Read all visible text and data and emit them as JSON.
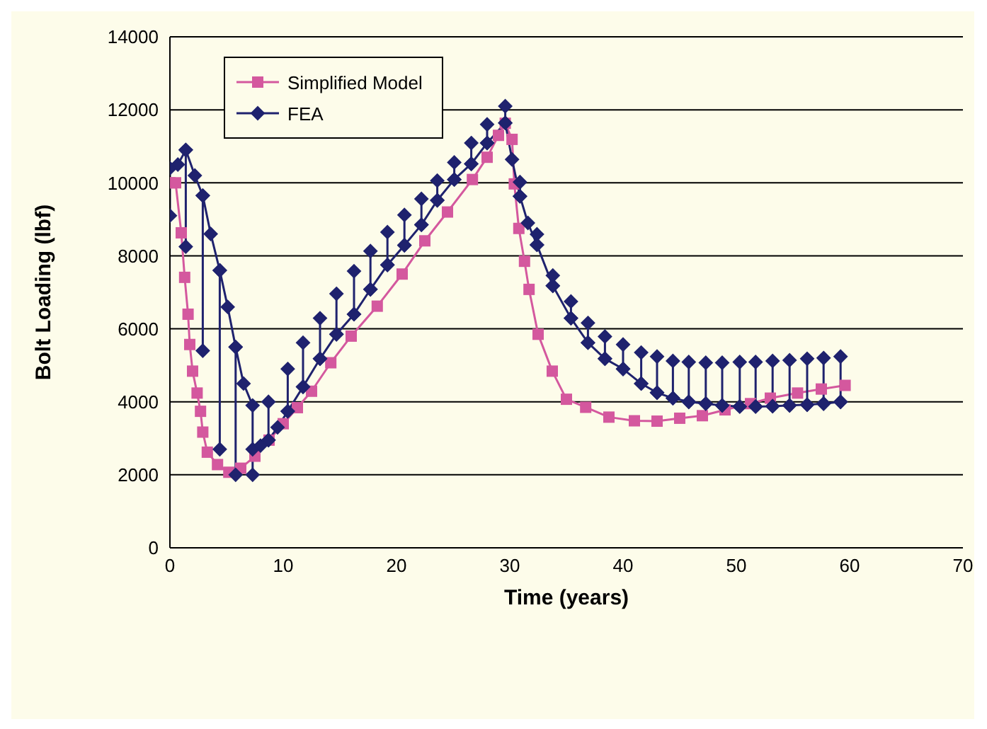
{
  "chart_data": {
    "type": "line",
    "xlabel": "Time (years)",
    "ylabel": "Bolt Loading (lbf)",
    "xlim": [
      0,
      70
    ],
    "xticks": [
      0,
      10,
      20,
      30,
      40,
      50,
      60,
      70
    ],
    "ylim": [
      0,
      14000
    ],
    "yticks": [
      0,
      2000,
      4000,
      6000,
      8000,
      10000,
      12000,
      14000
    ],
    "grid": "y",
    "legend": "top left",
    "line_style": "solid",
    "series": [
      {
        "name": "Simplified Model",
        "color": "#d4589e",
        "marker": "square",
        "x": [
          0,
          0.5,
          1.0,
          1.3,
          1.6,
          1.75,
          2.0,
          2.4,
          2.7,
          2.9,
          3.3,
          4.2,
          5.2,
          6.25,
          7.5,
          8.75,
          10,
          11.25,
          12.5,
          14.2,
          16,
          18.3,
          20.5,
          22.5,
          24.5,
          26.7,
          28,
          29,
          29.6,
          30.2,
          30.4,
          30.8,
          31.3,
          31.7,
          32.5,
          33.75,
          35,
          36.7,
          38.75,
          41,
          43,
          45,
          47,
          49,
          51.25,
          53,
          55.4,
          57.5,
          59.6
        ],
        "values": [
          10000,
          10000,
          8630,
          7410,
          6400,
          5570,
          4840,
          4240,
          3740,
          3170,
          2620,
          2280,
          2070,
          2180,
          2510,
          2950,
          3400,
          3840,
          4290,
          5070,
          5800,
          6620,
          7500,
          8410,
          9200,
          10090,
          10700,
          11300,
          11630,
          11190,
          9970,
          8750,
          7850,
          7080,
          5850,
          4840,
          4070,
          3850,
          3580,
          3480,
          3470,
          3550,
          3620,
          3780,
          3950,
          4100,
          4240,
          4350,
          4450
        ]
      },
      {
        "name": "FEA",
        "color": "#1f226e",
        "marker": "diamond",
        "x": [
          0,
          0,
          0.7,
          1.4,
          1.4,
          1.4,
          2.2,
          2.9,
          2.9,
          2.9,
          3.6,
          4.4,
          4.4,
          4.4,
          5.1,
          5.8,
          5.8,
          5.8,
          6.5,
          7.3,
          7.3,
          7.3,
          8.0,
          8.7,
          8.7,
          8.7,
          9.5,
          10.4,
          10.4,
          10.4,
          11.75,
          11.75,
          11.75,
          13.25,
          13.25,
          13.25,
          14.7,
          14.7,
          14.7,
          16.25,
          16.25,
          16.25,
          17.7,
          17.7,
          17.7,
          19.2,
          19.2,
          19.2,
          20.7,
          20.7,
          20.7,
          22.2,
          22.2,
          22.2,
          23.6,
          23.6,
          23.6,
          25.1,
          25.1,
          25.1,
          26.6,
          26.6,
          26.6,
          28,
          28,
          28,
          29.6,
          29.6,
          29.6,
          30.2,
          30.9,
          30.9,
          30.9,
          31.6,
          32.4,
          32.4,
          32.4,
          33.8,
          33.8,
          33.8,
          35.4,
          35.4,
          35.4,
          36.9,
          36.9,
          36.9,
          38.4,
          38.4,
          38.4,
          40,
          40,
          40,
          41.6,
          41.6,
          41.6,
          43,
          43,
          43,
          44.4,
          44.4,
          44.4,
          45.8,
          45.8,
          45.8,
          47.3,
          47.3,
          47.3,
          48.75,
          48.75,
          48.75,
          50.3,
          50.3,
          50.3,
          51.7,
          51.7,
          51.7,
          53.2,
          53.2,
          53.2,
          54.7,
          54.7,
          54.7,
          56.25,
          56.25,
          56.25,
          57.7,
          57.7,
          57.7,
          59.2,
          59.2,
          59.2
        ],
        "values": [
          9100,
          10400,
          10500,
          10900,
          8250,
          10900,
          10200,
          9650,
          5400,
          9650,
          8600,
          7600,
          2700,
          7600,
          6600,
          5500,
          2000,
          5500,
          4500,
          3900,
          2000,
          2700,
          2800,
          2950,
          4000,
          2950,
          3300,
          3740,
          4900,
          3740,
          4410,
          5620,
          4410,
          5180,
          6290,
          5180,
          5850,
          6960,
          5850,
          6400,
          7580,
          6400,
          7080,
          8130,
          7080,
          7750,
          8650,
          7750,
          8290,
          9120,
          8290,
          8850,
          9560,
          8850,
          9520,
          10060,
          9520,
          10090,
          10560,
          10090,
          10520,
          11090,
          10520,
          11090,
          11600,
          11090,
          11640,
          12100,
          11640,
          10640,
          9630,
          10020,
          9630,
          8900,
          8300,
          8590,
          8300,
          7180,
          7460,
          7180,
          6290,
          6750,
          6290,
          5620,
          6160,
          5620,
          5180,
          5790,
          5180,
          4900,
          5570,
          4900,
          4500,
          5350,
          4500,
          4250,
          5240,
          4250,
          4100,
          5120,
          4100,
          4000,
          5090,
          4000,
          3950,
          5070,
          3950,
          3900,
          5070,
          3900,
          3870,
          5090,
          3870,
          3870,
          5090,
          3870,
          3880,
          5120,
          3880,
          3900,
          5140,
          3900,
          3920,
          5180,
          3920,
          3950,
          5200,
          3950,
          4000,
          5240,
          4000
        ]
      }
    ]
  }
}
